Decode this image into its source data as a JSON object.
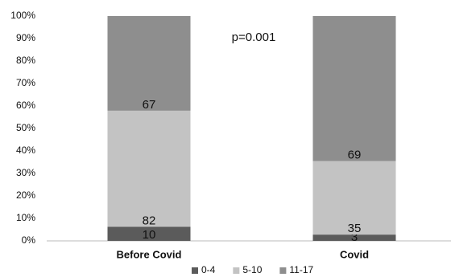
{
  "chart_data": {
    "type": "stacked_bar",
    "annotation": "p=0.001",
    "categories": [
      "Before Covid",
      "Covid"
    ],
    "series": [
      {
        "name": "0-4",
        "color": "#5b5b5b",
        "values": [
          6.3,
          2.8
        ],
        "counts": [
          10,
          3
        ]
      },
      {
        "name": "5-10",
        "color": "#c3c3c3",
        "values": [
          51.6,
          32.7
        ],
        "counts": [
          82,
          35
        ]
      },
      {
        "name": "11-17",
        "color": "#8e8e8e",
        "values": [
          42.1,
          64.5
        ],
        "counts": [
          67,
          69
        ]
      }
    ],
    "ylim": [
      0,
      100
    ],
    "yticks": [
      {
        "value": 0,
        "label": "0%"
      },
      {
        "value": 10,
        "label": "10%"
      },
      {
        "value": 20,
        "label": "20%"
      },
      {
        "value": 30,
        "label": "30%"
      },
      {
        "value": 40,
        "label": "40%"
      },
      {
        "value": 50,
        "label": "50%"
      },
      {
        "value": 60,
        "label": "60%"
      },
      {
        "value": 70,
        "label": "70%"
      },
      {
        "value": 80,
        "label": "80%"
      },
      {
        "value": 90,
        "label": "90%"
      },
      {
        "value": 100,
        "label": "100%"
      }
    ],
    "grid": false,
    "legend": "bottom"
  }
}
